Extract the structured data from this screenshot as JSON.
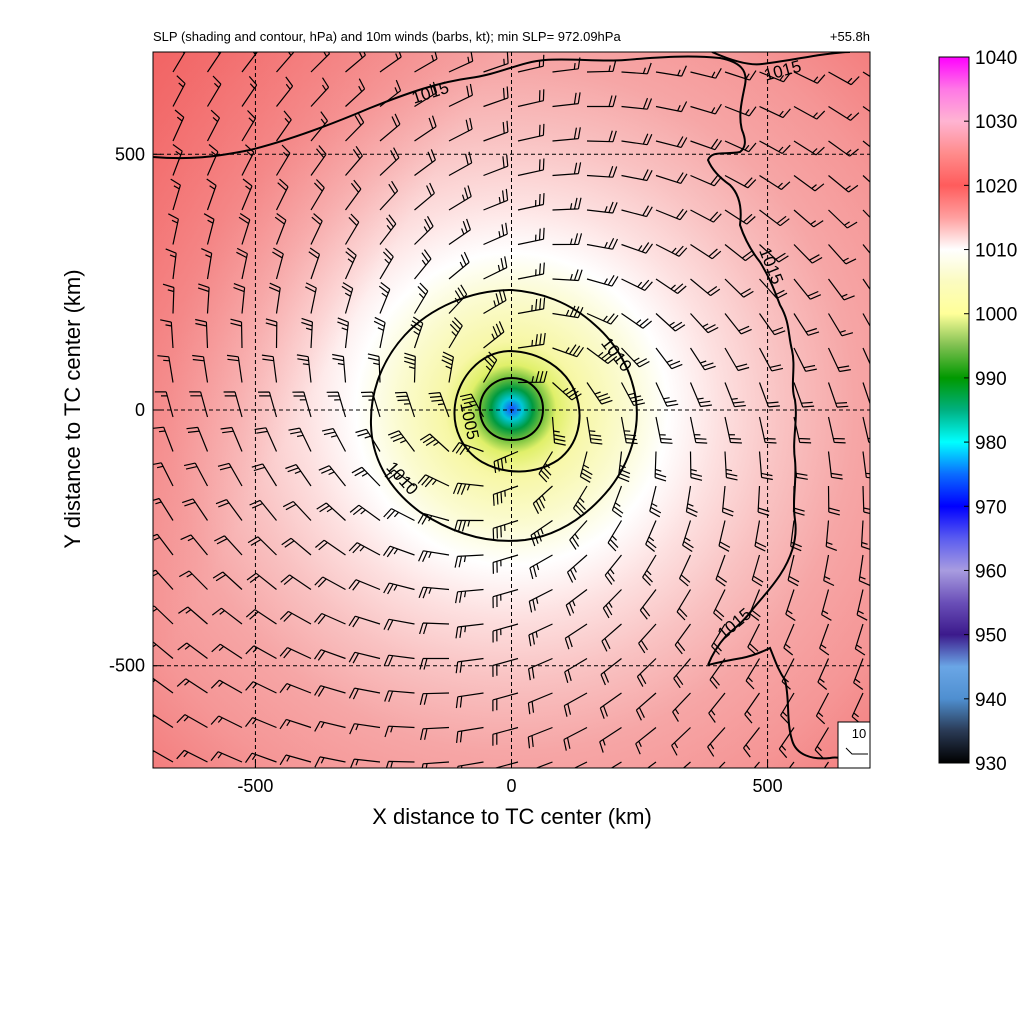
{
  "chart_data": {
    "type": "heatmap",
    "title": "SLP (shading and contour, hPa) and 10m winds (barbs, kt); min SLP= 972.09hPa",
    "time_label": "+55.8h",
    "xlabel": "X distance to TC center (km)",
    "ylabel": "Y distance to TC center (km)",
    "xlim": [
      -700,
      700
    ],
    "ylim": [
      -700,
      700
    ],
    "x_ticks": [
      -500,
      0,
      500
    ],
    "y_ticks": [
      -500,
      0,
      500
    ],
    "x_tick_labels": [
      "-500",
      "0",
      "500"
    ],
    "y_tick_labels": [
      "-500",
      "0",
      "500"
    ],
    "grid": true,
    "min_slp_hpa": 972.09,
    "center": [
      0,
      0
    ],
    "colorbar": {
      "min": 930,
      "max": 1040,
      "ticks": [
        930,
        940,
        950,
        960,
        970,
        980,
        990,
        1000,
        1010,
        1020,
        1030,
        1040
      ],
      "tick_labels": [
        "930",
        "940",
        "950",
        "960",
        "970",
        "980",
        "990",
        "1000",
        "1010",
        "1020",
        "1030",
        "1040"
      ],
      "stops": [
        {
          "value": 930,
          "color": "#000000"
        },
        {
          "value": 935,
          "color": "#2a3a55"
        },
        {
          "value": 940,
          "color": "#4f8fd0"
        },
        {
          "value": 945,
          "color": "#6aa6e6"
        },
        {
          "value": 950,
          "color": "#3c1a8c"
        },
        {
          "value": 955,
          "color": "#6a4fb8"
        },
        {
          "value": 960,
          "color": "#a89ce0"
        },
        {
          "value": 965,
          "color": "#5a5cf0"
        },
        {
          "value": 970,
          "color": "#0000ff"
        },
        {
          "value": 975,
          "color": "#0a6cff"
        },
        {
          "value": 980,
          "color": "#00ffff"
        },
        {
          "value": 985,
          "color": "#00b080"
        },
        {
          "value": 990,
          "color": "#009900"
        },
        {
          "value": 995,
          "color": "#7fc050"
        },
        {
          "value": 1000,
          "color": "#ffff99"
        },
        {
          "value": 1005,
          "color": "#fbfbc0"
        },
        {
          "value": 1010,
          "color": "#ffffff"
        },
        {
          "value": 1015,
          "color": "#ff9f9f"
        },
        {
          "value": 1020,
          "color": "#ff5c5c"
        },
        {
          "value": 1025,
          "color": "#ff8c8c"
        },
        {
          "value": 1030,
          "color": "#ffb4d2"
        },
        {
          "value": 1035,
          "color": "#ff78e6"
        },
        {
          "value": 1040,
          "color": "#ff00ff"
        }
      ]
    },
    "contours": [
      {
        "level": 1005,
        "label": "1005",
        "radius_km": 125
      },
      {
        "level": 1010,
        "label": "1010",
        "radius_km": 270
      },
      {
        "level": 1015,
        "label": "1015",
        "label_positions": [
          "top-left",
          "top-right",
          "right",
          "bottom-right"
        ]
      }
    ],
    "wind_barbs": {
      "units": "kt",
      "rotation": "cyclonic (counter-clockwise)",
      "reference_vector": {
        "label": "10",
        "speed_kt": 10
      }
    }
  }
}
